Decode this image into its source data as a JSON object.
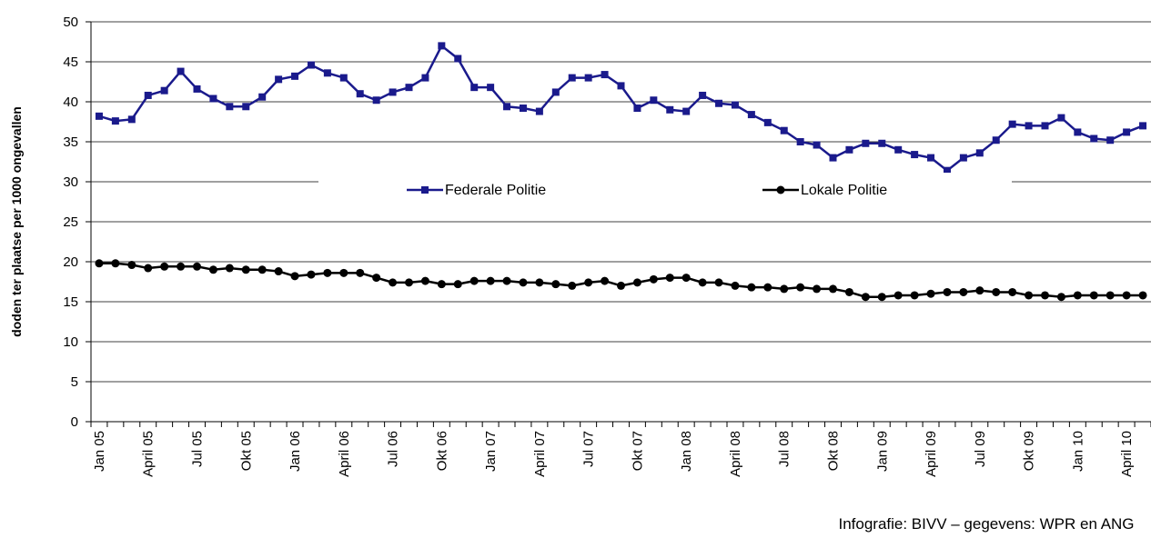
{
  "chart_data": {
    "type": "line",
    "y_label": "doden ter plaatse per 1000 ongevallen",
    "source": "Infografie: BIVV – gegevens: WPR en ANG",
    "categories": [
      "Jan 05",
      null,
      null,
      "April 05",
      null,
      null,
      "Jul 05",
      null,
      null,
      "Okt 05",
      null,
      null,
      "Jan 06",
      null,
      null,
      "April 06",
      null,
      null,
      "Jul 06",
      null,
      null,
      "Okt 06",
      null,
      null,
      "Jan 07",
      null,
      null,
      "April 07",
      null,
      null,
      "Jul 07",
      null,
      null,
      "Okt 07",
      null,
      null,
      "Jan 08",
      null,
      null,
      "April 08",
      null,
      null,
      "Jul 08",
      null,
      null,
      "Okt 08",
      null,
      null,
      "Jan 09",
      null,
      null,
      "April 09",
      null,
      null,
      "Jul 09",
      null,
      null,
      "Okt 09",
      null,
      null,
      "Jan 10",
      null,
      null,
      "April 10",
      null
    ],
    "series": [
      {
        "name": "Federale Politie",
        "color": "#1a1a8c",
        "marker": "square",
        "values": [
          38.2,
          37.6,
          37.8,
          40.8,
          41.4,
          43.8,
          41.6,
          40.4,
          39.4,
          39.4,
          40.6,
          42.8,
          43.2,
          44.6,
          43.6,
          43.0,
          41.0,
          40.2,
          41.2,
          41.8,
          43.0,
          47.0,
          45.4,
          41.8,
          41.8,
          39.4,
          39.2,
          38.8,
          41.2,
          43.0,
          43.0,
          43.4,
          42.0,
          39.2,
          40.2,
          39.0,
          38.8,
          40.8,
          39.8,
          39.6,
          38.4,
          37.4,
          36.4,
          35.0,
          34.6,
          33.0,
          34.0,
          34.8,
          34.8,
          34.0,
          33.4,
          33.0,
          31.4,
          33.0,
          33.6,
          35.2,
          37.2,
          37.0,
          37.0,
          38.0,
          36.2,
          35.4,
          35.2,
          36.2,
          37.0
        ]
      },
      {
        "name": "Lokale Politie",
        "color": "#000000",
        "marker": "circle",
        "values": [
          19.8,
          19.8,
          19.6,
          19.2,
          19.4,
          19.4,
          19.4,
          19.0,
          19.2,
          19.0,
          19.0,
          18.8,
          18.2,
          18.4,
          18.6,
          18.6,
          18.6,
          18.0,
          17.4,
          17.4,
          17.6,
          17.2,
          17.2,
          17.6,
          17.6,
          17.6,
          17.4,
          17.4,
          17.2,
          17.0,
          17.4,
          17.6,
          17.0,
          17.4,
          17.8,
          18.0,
          18.0,
          17.4,
          17.4,
          17.0,
          16.8,
          16.8,
          16.6,
          16.8,
          16.6,
          16.6,
          16.2,
          15.6,
          15.6,
          15.8,
          15.8,
          16.0,
          16.2,
          16.2,
          16.4,
          16.2,
          16.2,
          15.8,
          15.8,
          15.6,
          15.8,
          15.8,
          15.8,
          15.8,
          15.8
        ]
      }
    ],
    "ylim": [
      0,
      50
    ],
    "yticks": [
      0,
      5,
      10,
      15,
      20,
      25,
      30,
      35,
      40,
      45,
      50
    ],
    "grid": true,
    "legend": "center"
  }
}
